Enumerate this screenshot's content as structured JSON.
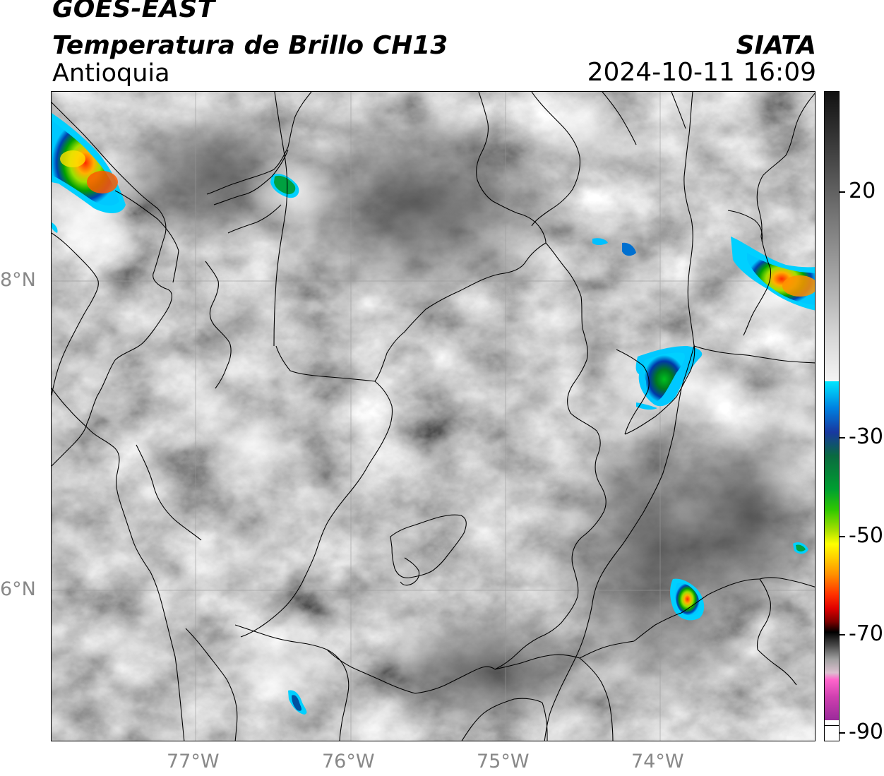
{
  "header": {
    "satellite": "GOES-EAST",
    "product": "Temperatura de Brillo CH13",
    "region": "Antioquia",
    "organization": "SIATA",
    "datetime": "2024-10-11 16:09"
  },
  "map": {
    "latitude_labels": [
      "8°N",
      "6°N"
    ],
    "longitude_labels": [
      "77°W",
      "76°W",
      "75°W",
      "74°W"
    ],
    "background_color": "#6e6e6e",
    "storm_cells": [
      "northwest-coast",
      "urabá-north",
      "magdalena-medio-east",
      "northeast-edge",
      "east-sanmiguel",
      "southeast-cell",
      "southwest-cell",
      "east-right-edge",
      "center-north-small"
    ]
  },
  "colorbar": {
    "tick_labels": [
      "20",
      "-30",
      "-50",
      "-70",
      "-90"
    ],
    "colors": [
      "#111111",
      "#555555",
      "#9a9a9a",
      "#e6e6e6",
      "#00e6ff",
      "#0050c8",
      "#00a000",
      "#70e000",
      "#ffff00",
      "#ff9000",
      "#ff0000",
      "#7a0000",
      "#000000",
      "#b0b0b0",
      "#ff66cc",
      "#9a2a9a",
      "#ffffff"
    ]
  }
}
